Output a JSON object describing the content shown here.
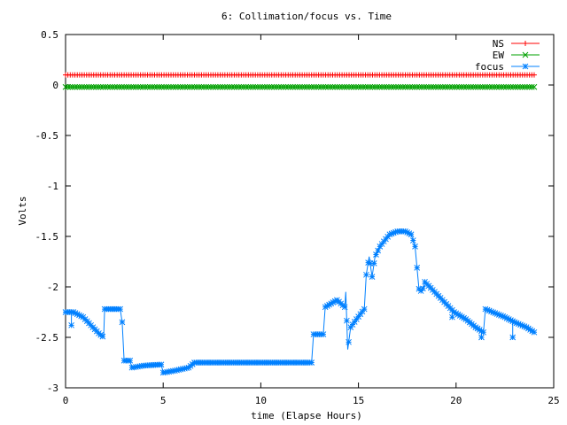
{
  "chart_data": {
    "type": "line",
    "title": "6: Collimation/focus vs. Time",
    "xlabel": "time (Elapse Hours)",
    "ylabel": "Volts",
    "xlim": [
      0,
      25
    ],
    "ylim": [
      -3,
      0.5
    ],
    "x_ticks": [
      0,
      5,
      10,
      15,
      20,
      25
    ],
    "x_tick_labels": [
      "0",
      "5",
      "10",
      "15",
      "20",
      "25"
    ],
    "y_ticks": [
      0.5,
      0,
      -0.5,
      -1,
      -1.5,
      -2,
      -2.5,
      -3
    ],
    "y_tick_labels": [
      "0.5",
      "0",
      "-0.5",
      "-1",
      "-1.5",
      "-2",
      "-2.5",
      "-3"
    ],
    "grid": false,
    "legend_position": "top-right",
    "series": [
      {
        "name": "NS",
        "color": "#ff0000",
        "marker": "plus",
        "points": [
          [
            0,
            0.1
          ],
          [
            24,
            0.1
          ]
        ],
        "sample_step": 0.12
      },
      {
        "name": "EW",
        "color": "#00a000",
        "marker": "cross",
        "points": [
          [
            0,
            -0.02
          ],
          [
            24,
            -0.02
          ]
        ],
        "sample_step": 0.12
      },
      {
        "name": "focus",
        "color": "#0080ff",
        "marker": "star",
        "sample_step": 0.1,
        "points": [
          [
            0,
            -2.25
          ],
          [
            0.4,
            -2.25
          ],
          [
            0.6,
            -2.27
          ],
          [
            0.9,
            -2.3
          ],
          [
            1.3,
            -2.38
          ],
          [
            1.7,
            -2.46
          ],
          [
            1.95,
            -2.5
          ],
          [
            2.0,
            -2.22
          ],
          [
            2.8,
            -2.22
          ],
          [
            2.9,
            -2.35
          ],
          [
            3.0,
            -2.73
          ],
          [
            3.3,
            -2.73
          ],
          [
            3.4,
            -2.8
          ],
          [
            4.0,
            -2.78
          ],
          [
            4.9,
            -2.77
          ],
          [
            5.0,
            -2.85
          ],
          [
            5.6,
            -2.83
          ],
          [
            6.3,
            -2.8
          ],
          [
            6.6,
            -2.75
          ],
          [
            12.6,
            -2.75
          ],
          [
            12.7,
            -2.47
          ],
          [
            13.2,
            -2.47
          ],
          [
            13.3,
            -2.2
          ],
          [
            13.9,
            -2.13
          ],
          [
            14.3,
            -2.2
          ],
          [
            14.35,
            -2.05
          ],
          [
            14.45,
            -2.62
          ],
          [
            14.6,
            -2.4
          ],
          [
            14.9,
            -2.32
          ],
          [
            15.3,
            -2.22
          ],
          [
            15.4,
            -1.88
          ],
          [
            15.55,
            -1.7
          ],
          [
            15.7,
            -1.9
          ],
          [
            15.85,
            -1.7
          ],
          [
            16.1,
            -1.6
          ],
          [
            16.3,
            -1.55
          ],
          [
            16.6,
            -1.48
          ],
          [
            17.0,
            -1.45
          ],
          [
            17.4,
            -1.45
          ],
          [
            17.7,
            -1.48
          ],
          [
            17.9,
            -1.6
          ],
          [
            18.1,
            -2.02
          ],
          [
            18.25,
            -2.05
          ],
          [
            18.4,
            -1.95
          ],
          [
            18.9,
            -2.05
          ],
          [
            19.4,
            -2.15
          ],
          [
            19.9,
            -2.25
          ],
          [
            20.5,
            -2.32
          ],
          [
            21.0,
            -2.4
          ],
          [
            21.4,
            -2.45
          ],
          [
            21.5,
            -2.22
          ],
          [
            22.5,
            -2.3
          ],
          [
            23.0,
            -2.35
          ],
          [
            23.6,
            -2.4
          ],
          [
            24.0,
            -2.45
          ]
        ],
        "spikes": [
          [
            0.3,
            -2.25,
            -2.38
          ],
          [
            19.8,
            -2.22,
            -2.3
          ],
          [
            21.3,
            -2.45,
            -2.5
          ],
          [
            22.9,
            -2.35,
            -2.5
          ]
        ]
      }
    ]
  }
}
